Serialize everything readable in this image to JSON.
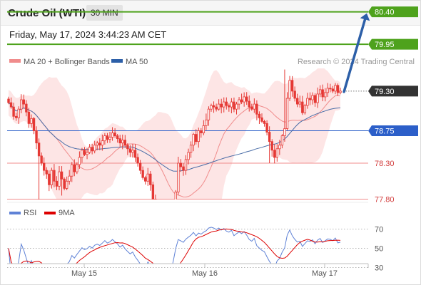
{
  "header": {
    "instrument": "Crude Oil (WTI)",
    "timeframe": "30 MIN",
    "timestamp": "Friday, May 17, 2024 3:44:23 AM CET",
    "credit": "Research © 2024 Trading Central"
  },
  "colors": {
    "candle": "#e53935",
    "ma20": "#f08c8c",
    "band_fill": "#fde0e0",
    "ma50": "#4a6da7",
    "resistance": "#4ea21c",
    "pivot": "#2c5fc9",
    "support": "#f08c8c",
    "last_price_badge": "#333333",
    "arrow": "#2c5fa8",
    "rsi": "#5f82d6",
    "rsi_ma": "#dd0000"
  },
  "chart_data": [
    {
      "type": "candlestick",
      "legend": [
        {
          "label": "MA 20 + Bollinger Bands",
          "color": "#f08c8c"
        },
        {
          "label": "MA 50",
          "color": "#2c5fa8"
        }
      ],
      "ylim": [
        76.9,
        80.75
      ],
      "x_ticks": [
        "May 15",
        "May 16",
        "May 17"
      ],
      "close": [
        79.14,
        79.08,
        78.95,
        78.93,
        79.05,
        79.18,
        79.12,
        79.01,
        78.85,
        78.92,
        78.75,
        78.58,
        78.4,
        78.3,
        78.2,
        78.15,
        78.0,
        78.2,
        78.05,
        77.98,
        78.18,
        78.08,
        77.95,
        78.05,
        78.12,
        78.28,
        78.18,
        78.28,
        78.38,
        78.48,
        78.42,
        78.45,
        78.52,
        78.47,
        78.55,
        78.58,
        78.55,
        78.61,
        78.68,
        78.63,
        78.66,
        78.72,
        78.68,
        78.64,
        78.58,
        78.62,
        78.55,
        78.5,
        78.45,
        78.48,
        78.38,
        78.3,
        78.2,
        78.1,
        78.05,
        78.15,
        78.0,
        77.8,
        77.65,
        77.45,
        77.5,
        77.35,
        77.2,
        77.1,
        77.25,
        77.5,
        77.9,
        78.3,
        78.25,
        78.2,
        78.35,
        78.45,
        78.55,
        78.7,
        78.6,
        78.75,
        78.72,
        78.82,
        78.9,
        79.05,
        79.1,
        79.08,
        79.05,
        79.12,
        79.08,
        79.15,
        79.1,
        79.08,
        79.15,
        79.05,
        79.12,
        79.18,
        79.15,
        79.22,
        79.16,
        79.08,
        79.05,
        79.12,
        78.98,
        78.93,
        78.88,
        78.85,
        78.73,
        78.6,
        78.48,
        78.38,
        78.5,
        78.55,
        78.68,
        78.78,
        79.2,
        79.45,
        79.3,
        79.2,
        79.12,
        79.15,
        79.0,
        79.1,
        79.2,
        79.18,
        79.24,
        79.14,
        79.26,
        79.32,
        79.22,
        79.28,
        79.34,
        79.33,
        79.3,
        79.38,
        79.28,
        79.3
      ],
      "price_levels": [
        {
          "value": "80.40",
          "kind": "resistance"
        },
        {
          "value": "79.95",
          "kind": "resistance"
        },
        {
          "value": "79.30",
          "kind": "last"
        },
        {
          "value": "78.75",
          "kind": "pivot"
        },
        {
          "value": "78.30",
          "kind": "support"
        },
        {
          "value": "77.80",
          "kind": "support"
        }
      ]
    },
    {
      "type": "line",
      "legend": [
        {
          "label": "RSI",
          "color": "#5f82d6"
        },
        {
          "label": "9MA",
          "color": "#dd0000"
        }
      ],
      "ylim": [
        20,
        80
      ],
      "y_ticks": [
        "70",
        "50",
        "30"
      ]
    }
  ]
}
